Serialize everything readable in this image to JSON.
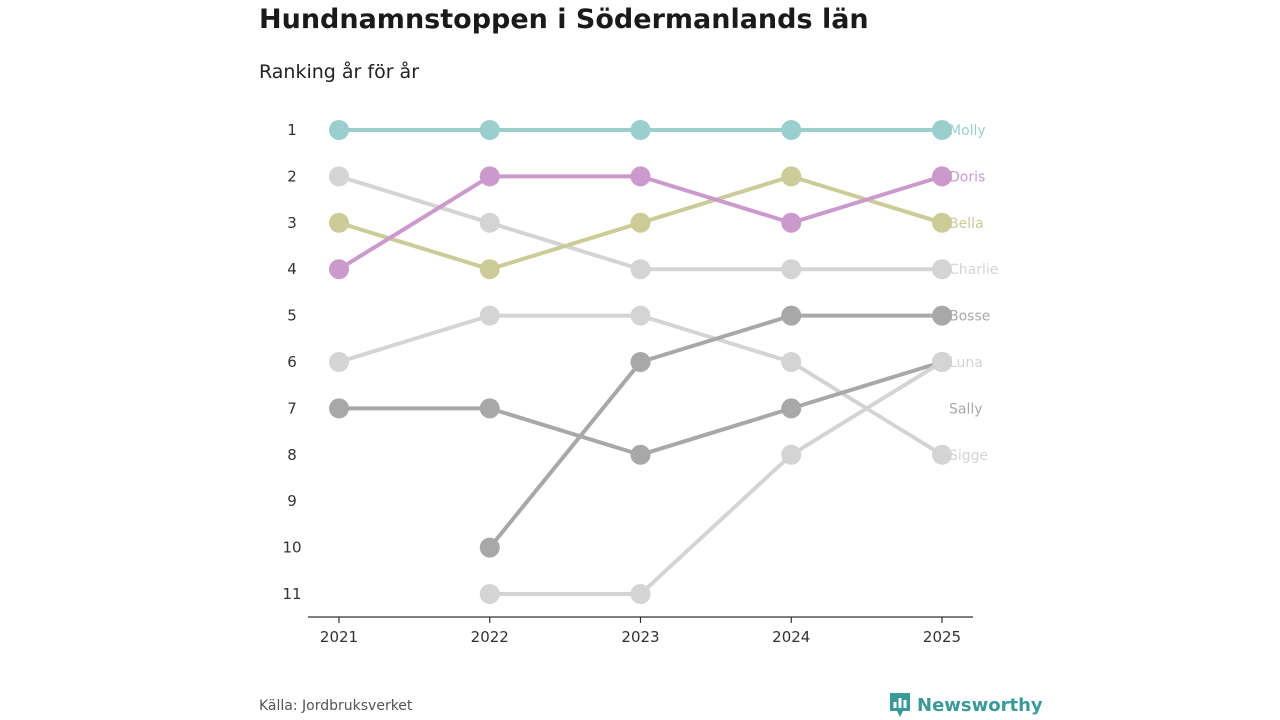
{
  "title": "Hundnamnstoppen i Södermanlands län",
  "subtitle": "Ranking år för år",
  "source": "Källa: Jordbruksverket",
  "brand": "Newsworthy",
  "colors": {
    "brand": "#3a9a9a",
    "axis": "#333333",
    "molly": "#9acfcd",
    "doris": "#cc99cc",
    "bella": "#cccc99",
    "light_gray": "#d4d4d4",
    "dark_gray": "#a8a8a8"
  },
  "chart_data": {
    "type": "line",
    "subtype": "bump",
    "title": "Hundnamnstoppen i Södermanlands län",
    "subtitle": "Ranking år för år",
    "xlabel": "",
    "ylabel": "",
    "x": [
      2021,
      2022,
      2023,
      2024,
      2025
    ],
    "y_ticks": [
      1,
      2,
      3,
      4,
      5,
      6,
      7,
      8,
      9,
      10,
      11
    ],
    "ylim": [
      11,
      1
    ],
    "y_reversed": true,
    "series": [
      {
        "name": "Molly",
        "color": "#9acfcd",
        "values": [
          1,
          1,
          1,
          1,
          1
        ]
      },
      {
        "name": "Doris",
        "color": "#cc99cc",
        "values": [
          4,
          2,
          2,
          3,
          2
        ]
      },
      {
        "name": "Bella",
        "color": "#cccc99",
        "values": [
          3,
          4,
          3,
          2,
          3
        ]
      },
      {
        "name": "Charlie",
        "color": "#d4d4d4",
        "values": [
          2,
          3,
          4,
          4,
          4
        ]
      },
      {
        "name": "Bosse",
        "color": "#a8a8a8",
        "values": [
          null,
          10,
          6,
          5,
          5
        ]
      },
      {
        "name": "Luna",
        "color": "#d4d4d4",
        "values": [
          null,
          11,
          11,
          8,
          6
        ]
      },
      {
        "name": "Sally",
        "color": "#a8a8a8",
        "values": [
          7,
          7,
          8,
          7,
          6
        ]
      },
      {
        "name": "Sigge",
        "color": "#d4d4d4",
        "values": [
          6,
          5,
          5,
          6,
          8
        ]
      }
    ]
  }
}
